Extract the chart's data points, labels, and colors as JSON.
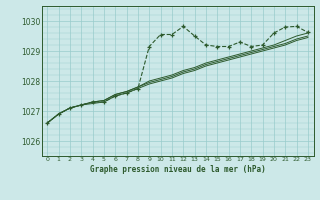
{
  "background_color": "#cce8e8",
  "plot_bg_color": "#cce8e8",
  "grid_color": "#99cccc",
  "line_color": "#2d5a2d",
  "title": "Graphe pression niveau de la mer (hPa)",
  "xlim": [
    -0.5,
    23.5
  ],
  "ylim": [
    1025.5,
    1030.5
  ],
  "yticks": [
    1026,
    1027,
    1028,
    1029,
    1030
  ],
  "xticks": [
    0,
    1,
    2,
    3,
    4,
    5,
    6,
    7,
    8,
    9,
    10,
    11,
    12,
    13,
    14,
    15,
    16,
    17,
    18,
    19,
    20,
    21,
    22,
    23
  ],
  "series1": [
    1026.6,
    1026.9,
    1027.1,
    1027.2,
    1027.3,
    1027.3,
    1027.5,
    1027.6,
    1027.75,
    1029.15,
    1029.55,
    1029.55,
    1029.82,
    1029.5,
    1029.2,
    1029.15,
    1029.15,
    1029.3,
    1029.15,
    1029.2,
    1029.6,
    1029.8,
    1029.82,
    1029.62
  ],
  "series2": [
    1026.6,
    1026.9,
    1027.1,
    1027.2,
    1027.3,
    1027.35,
    1027.55,
    1027.65,
    1027.8,
    1028.0,
    1028.1,
    1028.2,
    1028.35,
    1028.45,
    1028.6,
    1028.7,
    1028.8,
    1028.9,
    1029.0,
    1029.1,
    1029.2,
    1029.35,
    1029.5,
    1029.6
  ],
  "series3": [
    1026.6,
    1026.9,
    1027.1,
    1027.2,
    1027.3,
    1027.35,
    1027.55,
    1027.65,
    1027.8,
    1027.95,
    1028.05,
    1028.15,
    1028.3,
    1028.4,
    1028.55,
    1028.65,
    1028.75,
    1028.85,
    1028.95,
    1029.05,
    1029.15,
    1029.25,
    1029.4,
    1029.5
  ],
  "series4": [
    1026.6,
    1026.9,
    1027.1,
    1027.2,
    1027.25,
    1027.3,
    1027.5,
    1027.6,
    1027.75,
    1027.9,
    1028.0,
    1028.1,
    1028.25,
    1028.35,
    1028.5,
    1028.6,
    1028.7,
    1028.8,
    1028.9,
    1029.0,
    1029.1,
    1029.2,
    1029.35,
    1029.45
  ]
}
